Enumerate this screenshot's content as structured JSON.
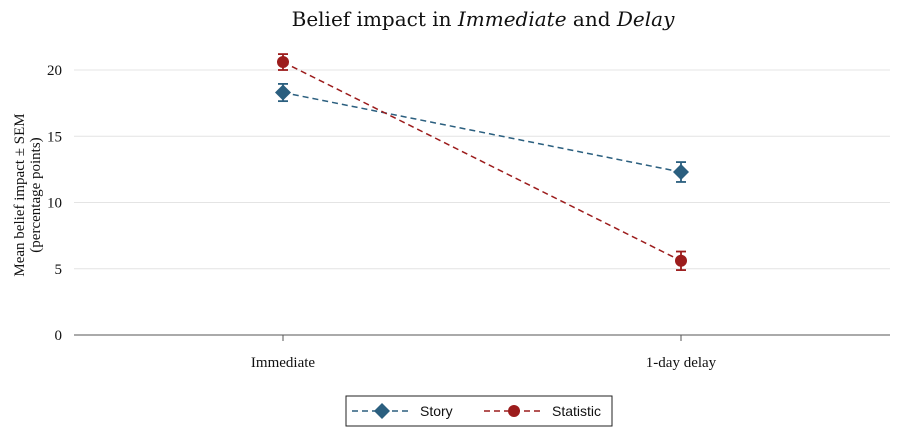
{
  "chart_data": {
    "type": "line",
    "title": {
      "parts": [
        {
          "text": "Belief impact in ",
          "italic": false
        },
        {
          "text": "Immediate",
          "italic": true
        },
        {
          "text": " and ",
          "italic": false
        },
        {
          "text": "Delay",
          "italic": true
        }
      ]
    },
    "ylabel": [
      "Mean belief impact ± SEM",
      "(percentage points)"
    ],
    "xlabel": "",
    "categories": [
      "Immediate",
      "1-day delay"
    ],
    "ylim": [
      0,
      22
    ],
    "yticks": [
      0,
      5,
      10,
      15,
      20
    ],
    "grid": true,
    "legend_position": "bottom-center",
    "series": [
      {
        "name": "Story",
        "values": [
          18.3,
          12.3
        ],
        "sem": [
          0.65,
          0.75
        ],
        "color": "#2b5f7f",
        "marker": "diamond",
        "line_style": "dashed"
      },
      {
        "name": "Statistic",
        "values": [
          20.6,
          5.6
        ],
        "sem": [
          0.6,
          0.7
        ],
        "color": "#9c1c1c",
        "marker": "circle",
        "line_style": "dashed"
      }
    ]
  }
}
